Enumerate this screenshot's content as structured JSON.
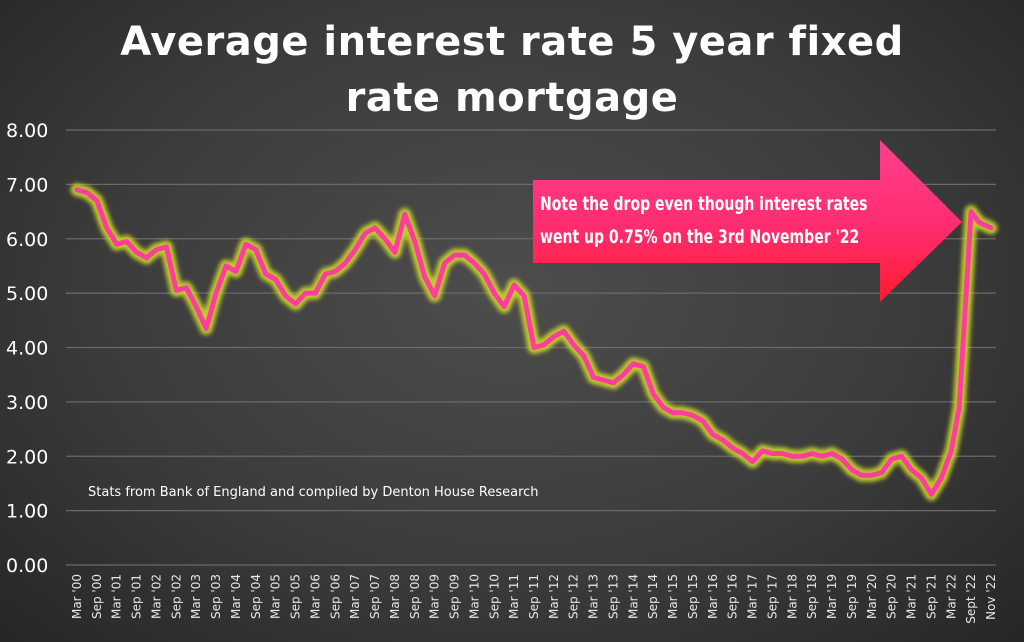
{
  "chart_data": {
    "type": "line",
    "title": [
      "Average interest rate 5 year fixed",
      "rate mortgage"
    ],
    "xlabel": "",
    "ylabel": "",
    "ylim": [
      0,
      8
    ],
    "yticks": [
      "0.00",
      "1.00",
      "2.00",
      "3.00",
      "4.00",
      "5.00",
      "6.00",
      "7.00",
      "8.00"
    ],
    "grid": true,
    "x_labels": [
      "Mar '00",
      "Sep '00",
      "Mar '01",
      "Sep '01",
      "Mar '02",
      "Sep '02",
      "Mar '03",
      "Sep '03",
      "Mar '04",
      "Sep '04",
      "Mar '05",
      "Sep '05",
      "Mar '06",
      "Sep '06",
      "Mar '07",
      "Sep '07",
      "Mar '08",
      "Sep '08",
      "Mar '09",
      "Sep '09",
      "Mar '10",
      "Sep '10",
      "Mar '11",
      "Sep '11",
      "Mar '12",
      "Sep '12",
      "Mar '13",
      "Sep '13",
      "Mar '14",
      "Sep '14",
      "Mar '15",
      "Sep '15",
      "Mar '16",
      "Sep '16",
      "Mar '17",
      "Sep '17",
      "Mar '18",
      "Sep '18",
      "Mar '19",
      "Sep '19",
      "Mar '20",
      "Sep '20",
      "Mar '21",
      "Sep '21",
      "Mar '22",
      "Sept '22",
      "Nov '22"
    ],
    "series": [
      {
        "name": "5 year fixed rate",
        "color": "#ff3d9a",
        "glow": "#d6e02a",
        "points": [
          [
            0,
            6.9
          ],
          [
            0.5,
            6.85
          ],
          [
            1,
            6.7
          ],
          [
            1.5,
            6.2
          ],
          [
            2,
            5.9
          ],
          [
            2.5,
            5.95
          ],
          [
            3,
            5.75
          ],
          [
            3.5,
            5.65
          ],
          [
            4,
            5.8
          ],
          [
            4.5,
            5.85
          ],
          [
            5,
            5.05
          ],
          [
            5.5,
            5.1
          ],
          [
            6,
            4.75
          ],
          [
            6.5,
            4.35
          ],
          [
            7,
            5.0
          ],
          [
            7.5,
            5.5
          ],
          [
            8,
            5.4
          ],
          [
            8.5,
            5.9
          ],
          [
            9,
            5.8
          ],
          [
            9.5,
            5.35
          ],
          [
            10,
            5.25
          ],
          [
            10.5,
            4.95
          ],
          [
            11,
            4.8
          ],
          [
            11.5,
            5.0
          ],
          [
            12,
            5.0
          ],
          [
            12.5,
            5.35
          ],
          [
            13,
            5.4
          ],
          [
            13.5,
            5.55
          ],
          [
            14,
            5.8
          ],
          [
            14.5,
            6.1
          ],
          [
            15,
            6.2
          ],
          [
            15.5,
            6.0
          ],
          [
            16,
            5.75
          ],
          [
            16.5,
            6.45
          ],
          [
            17,
            5.95
          ],
          [
            17.5,
            5.3
          ],
          [
            18,
            4.95
          ],
          [
            18.5,
            5.55
          ],
          [
            19,
            5.7
          ],
          [
            19.5,
            5.7
          ],
          [
            20,
            5.55
          ],
          [
            20.5,
            5.35
          ],
          [
            21,
            5.0
          ],
          [
            21.5,
            4.75
          ],
          [
            22,
            5.15
          ],
          [
            22.5,
            4.95
          ],
          [
            23,
            4.0
          ],
          [
            23.5,
            4.05
          ],
          [
            24,
            4.2
          ],
          [
            24.5,
            4.3
          ],
          [
            25,
            4.05
          ],
          [
            25.5,
            3.85
          ],
          [
            26,
            3.45
          ],
          [
            26.5,
            3.4
          ],
          [
            27,
            3.35
          ],
          [
            27.5,
            3.5
          ],
          [
            28,
            3.7
          ],
          [
            28.5,
            3.65
          ],
          [
            29,
            3.15
          ],
          [
            29.5,
            2.9
          ],
          [
            30,
            2.8
          ],
          [
            30.5,
            2.8
          ],
          [
            31,
            2.75
          ],
          [
            31.5,
            2.65
          ],
          [
            32,
            2.4
          ],
          [
            32.5,
            2.3
          ],
          [
            33,
            2.15
          ],
          [
            33.5,
            2.05
          ],
          [
            34,
            1.9
          ],
          [
            34.5,
            2.1
          ],
          [
            35,
            2.05
          ],
          [
            35.5,
            2.05
          ],
          [
            36,
            2.0
          ],
          [
            36.5,
            2.0
          ],
          [
            37,
            2.05
          ],
          [
            37.5,
            2.0
          ],
          [
            38,
            2.05
          ],
          [
            38.5,
            1.95
          ],
          [
            39,
            1.75
          ],
          [
            39.5,
            1.65
          ],
          [
            40,
            1.65
          ],
          [
            40.5,
            1.7
          ],
          [
            41,
            1.95
          ],
          [
            41.5,
            2.0
          ],
          [
            42,
            1.75
          ],
          [
            42.5,
            1.6
          ],
          [
            43,
            1.3
          ],
          [
            43.5,
            1.6
          ],
          [
            44,
            2.1
          ],
          [
            44.4,
            2.9
          ],
          [
            45,
            6.5
          ],
          [
            45.4,
            6.3
          ],
          [
            46,
            6.2
          ]
        ]
      }
    ],
    "annotations": {
      "note_lines": [
        "Note the drop even though interest rates",
        "went up 0.75% on the 3rd November '22"
      ],
      "source": "Stats from Bank of England and compiled by Denton House Research"
    }
  }
}
